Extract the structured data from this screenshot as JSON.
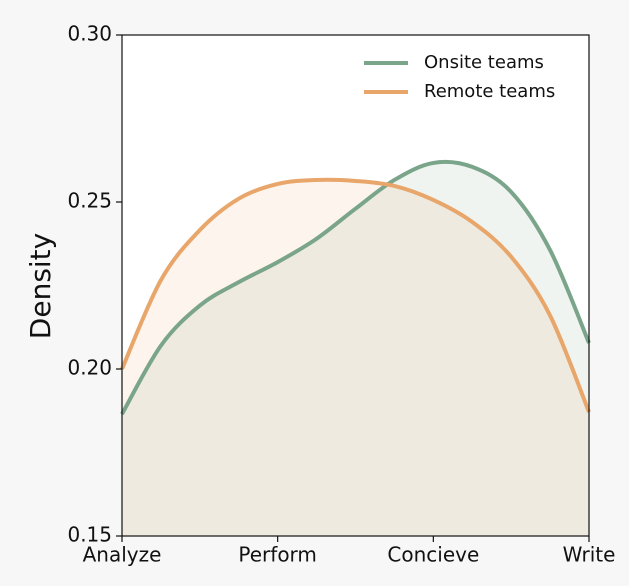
{
  "chart_data": {
    "type": "density",
    "y_label": "Density",
    "x": [
      0,
      0.25,
      0.5,
      0.75,
      1,
      1.25,
      1.5,
      1.75,
      2,
      2.25,
      2.5,
      2.75,
      3
    ],
    "series": [
      {
        "name": "Onsite teams",
        "color": "#7aa58a",
        "values": [
          0.1865,
          0.207,
          0.219,
          0.226,
          0.232,
          0.239,
          0.248,
          0.2566,
          0.2617,
          0.2605,
          0.253,
          0.2356,
          0.2078
        ]
      },
      {
        "name": "Remote teams",
        "color": "#e8a66a",
        "values": [
          0.2,
          0.2266,
          0.2416,
          0.251,
          0.2554,
          0.2566,
          0.2563,
          0.2548,
          0.2506,
          0.244,
          0.2336,
          0.216,
          0.1871
        ]
      }
    ],
    "xlim": [
      0,
      3
    ],
    "xticks": [
      {
        "value": 0,
        "label": "Analyze"
      },
      {
        "value": 1,
        "label": "Perform"
      },
      {
        "value": 2,
        "label": "Concieve"
      },
      {
        "value": 3,
        "label": "Write"
      }
    ],
    "ylim": [
      0.15,
      0.3
    ],
    "yticks": [
      0.15,
      {
        "value": 0.2,
        "label": "0.20"
      },
      0.25,
      {
        "value": 0.3,
        "label": "0.30"
      }
    ],
    "legend": "upper right",
    "fill_opacity": 0.12
  }
}
